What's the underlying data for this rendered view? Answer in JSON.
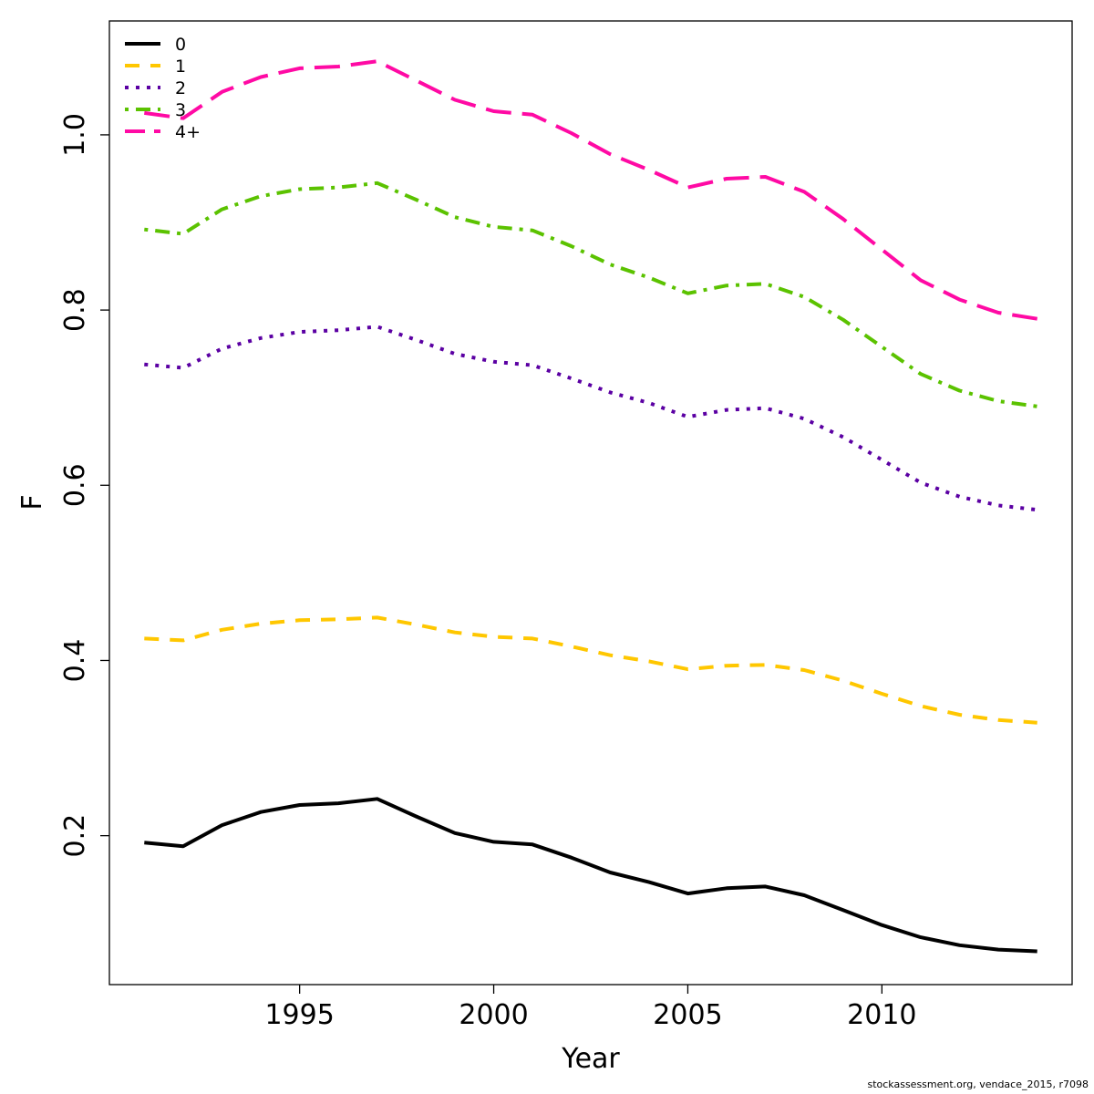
{
  "chart_data": {
    "type": "line",
    "title": "",
    "xlabel": "Year",
    "ylabel": "F",
    "xlim": [
      1990.1,
      2014.9
    ],
    "ylim": [
      0.03,
      1.13
    ],
    "x_ticks": [
      1995,
      2000,
      2005,
      2010
    ],
    "y_ticks": [
      0.2,
      0.4,
      0.6,
      0.8,
      1.0
    ],
    "x_tick_labels": [
      "1995",
      "2000",
      "2005",
      "2010"
    ],
    "y_tick_labels": [
      "0.2",
      "0.4",
      "0.6",
      "0.8",
      "1.0"
    ],
    "grid": false,
    "legend_position": "top-left",
    "x": [
      1991,
      1992,
      1993,
      1994,
      1995,
      1996,
      1997,
      1998,
      1999,
      2000,
      2001,
      2002,
      2003,
      2004,
      2005,
      2006,
      2007,
      2008,
      2009,
      2010,
      2011,
      2012,
      2013,
      2014
    ],
    "series": [
      {
        "name": "0",
        "color": "#000000",
        "dash": "solid",
        "values": [
          0.192,
          0.188,
          0.212,
          0.227,
          0.235,
          0.237,
          0.242,
          0.222,
          0.203,
          0.193,
          0.19,
          0.175,
          0.158,
          0.147,
          0.134,
          0.14,
          0.142,
          0.132,
          0.115,
          0.098,
          0.084,
          0.075,
          0.07,
          0.068
        ]
      },
      {
        "name": "1",
        "color": "#ffc700",
        "dash": "dashed",
        "values": [
          0.425,
          0.423,
          0.435,
          0.442,
          0.446,
          0.447,
          0.449,
          0.441,
          0.432,
          0.427,
          0.425,
          0.416,
          0.406,
          0.399,
          0.39,
          0.394,
          0.395,
          0.389,
          0.377,
          0.362,
          0.348,
          0.338,
          0.332,
          0.329
        ]
      },
      {
        "name": "2",
        "color": "#5b00a3",
        "dash": "dotted",
        "values": [
          0.738,
          0.734,
          0.756,
          0.768,
          0.775,
          0.777,
          0.781,
          0.766,
          0.75,
          0.741,
          0.737,
          0.722,
          0.706,
          0.694,
          0.678,
          0.686,
          0.688,
          0.676,
          0.655,
          0.629,
          0.603,
          0.587,
          0.577,
          0.572
        ]
      },
      {
        "name": "3",
        "color": "#5bc200",
        "dash": "dotdash",
        "values": [
          0.892,
          0.887,
          0.915,
          0.93,
          0.938,
          0.94,
          0.945,
          0.926,
          0.906,
          0.895,
          0.891,
          0.873,
          0.852,
          0.837,
          0.819,
          0.828,
          0.83,
          0.815,
          0.789,
          0.758,
          0.727,
          0.708,
          0.696,
          0.69
        ]
      },
      {
        "name": "4+",
        "color": "#ff0aa4",
        "dash": "longdash",
        "values": [
          1.025,
          1.019,
          1.049,
          1.066,
          1.076,
          1.078,
          1.084,
          1.062,
          1.04,
          1.027,
          1.023,
          1.002,
          0.978,
          0.96,
          0.94,
          0.95,
          0.952,
          0.935,
          0.904,
          0.869,
          0.834,
          0.812,
          0.797,
          0.79
        ]
      }
    ]
  },
  "footer": {
    "credit": "stockassessment.org, vendace_2015, r7098"
  }
}
